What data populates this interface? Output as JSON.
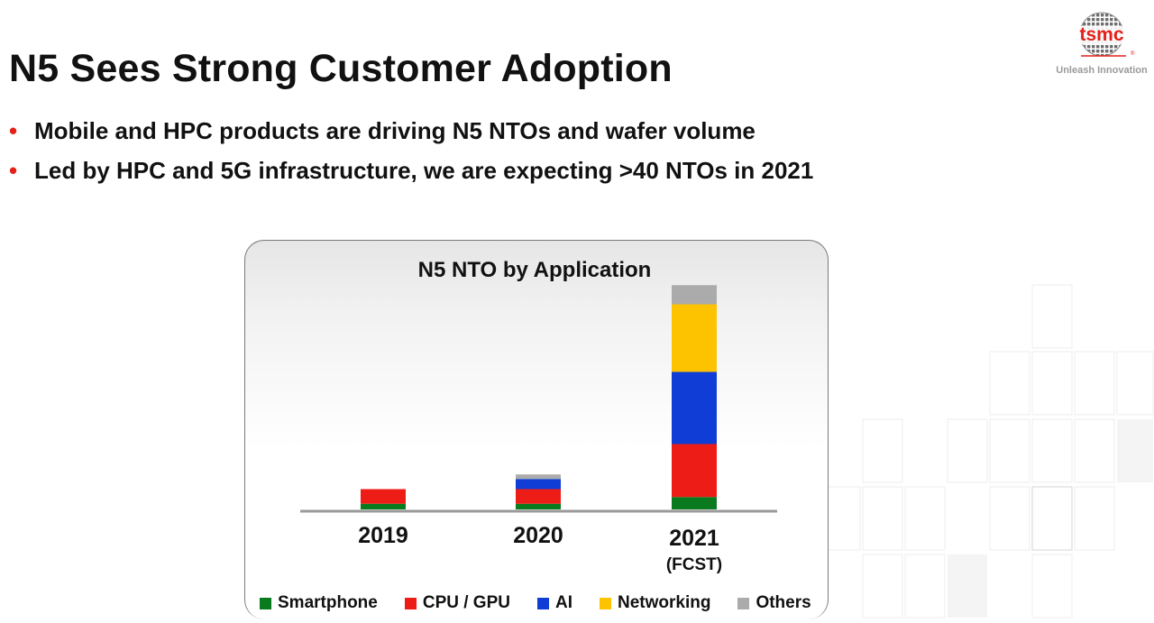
{
  "slide": {
    "title": "N5 Sees Strong Customer Adoption",
    "bullets": [
      "Mobile and HPC products are driving N5 NTOs and wafer volume",
      "Led by HPC and 5G infrastructure, we are expecting >40 NTOs in 2021"
    ],
    "bullet_marker": "•",
    "colors": {
      "bullet": "#e32119",
      "logo_red": "#e32119"
    }
  },
  "logo": {
    "text": "tsmc",
    "registered": "®",
    "slogan": "Unleash Innovation"
  },
  "chart_data": {
    "type": "bar",
    "stacked": true,
    "title": "N5 NTO by Application",
    "categories": [
      "2019",
      "2020",
      "2021"
    ],
    "category_sublabels": [
      "",
      "",
      "(FCST)"
    ],
    "xlabel": "",
    "ylabel": "",
    "ylim": [
      0,
      100
    ],
    "grid": false,
    "legend_position": "bottom",
    "series": [
      {
        "name": "Smartphone",
        "color": "#0a7a1e",
        "values": [
          2.5,
          2.5,
          5.5
        ]
      },
      {
        "name": "CPU / GPU",
        "color": "#ee1c16",
        "values": [
          6.5,
          6.5,
          23.5
        ]
      },
      {
        "name": "AI",
        "color": "#0f3dd6",
        "values": [
          0,
          4.5,
          32
        ]
      },
      {
        "name": "Networking",
        "color": "#fec300",
        "values": [
          0,
          0,
          30
        ]
      },
      {
        "name": "Others",
        "color": "#ababab",
        "values": [
          0,
          2,
          8.5
        ]
      }
    ]
  }
}
